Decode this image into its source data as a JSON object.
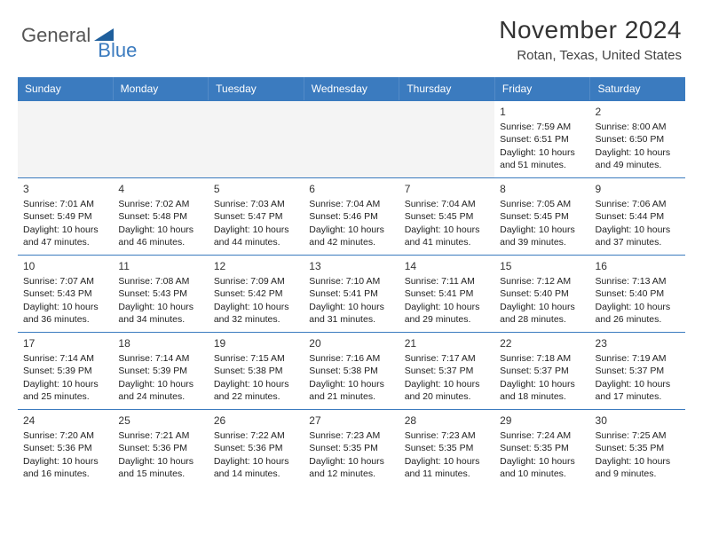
{
  "logo": {
    "part1": "General",
    "part2": "Blue"
  },
  "colors": {
    "accent": "#3b7bbf",
    "header_bg": "#3b7bbf",
    "header_text": "#ffffff",
    "grid_border": "#3b7bbf",
    "blank_bg": "#f4f4f4",
    "body_text": "#222222"
  },
  "title": "November 2024",
  "location": "Rotan, Texas, United States",
  "day_headers": [
    "Sunday",
    "Monday",
    "Tuesday",
    "Wednesday",
    "Thursday",
    "Friday",
    "Saturday"
  ],
  "weeks": [
    [
      {
        "blank": true
      },
      {
        "blank": true
      },
      {
        "blank": true
      },
      {
        "blank": true
      },
      {
        "blank": true
      },
      {
        "day": "1",
        "sunrise": "Sunrise: 7:59 AM",
        "sunset": "Sunset: 6:51 PM",
        "daylight1": "Daylight: 10 hours",
        "daylight2": "and 51 minutes."
      },
      {
        "day": "2",
        "sunrise": "Sunrise: 8:00 AM",
        "sunset": "Sunset: 6:50 PM",
        "daylight1": "Daylight: 10 hours",
        "daylight2": "and 49 minutes."
      }
    ],
    [
      {
        "day": "3",
        "sunrise": "Sunrise: 7:01 AM",
        "sunset": "Sunset: 5:49 PM",
        "daylight1": "Daylight: 10 hours",
        "daylight2": "and 47 minutes."
      },
      {
        "day": "4",
        "sunrise": "Sunrise: 7:02 AM",
        "sunset": "Sunset: 5:48 PM",
        "daylight1": "Daylight: 10 hours",
        "daylight2": "and 46 minutes."
      },
      {
        "day": "5",
        "sunrise": "Sunrise: 7:03 AM",
        "sunset": "Sunset: 5:47 PM",
        "daylight1": "Daylight: 10 hours",
        "daylight2": "and 44 minutes."
      },
      {
        "day": "6",
        "sunrise": "Sunrise: 7:04 AM",
        "sunset": "Sunset: 5:46 PM",
        "daylight1": "Daylight: 10 hours",
        "daylight2": "and 42 minutes."
      },
      {
        "day": "7",
        "sunrise": "Sunrise: 7:04 AM",
        "sunset": "Sunset: 5:45 PM",
        "daylight1": "Daylight: 10 hours",
        "daylight2": "and 41 minutes."
      },
      {
        "day": "8",
        "sunrise": "Sunrise: 7:05 AM",
        "sunset": "Sunset: 5:45 PM",
        "daylight1": "Daylight: 10 hours",
        "daylight2": "and 39 minutes."
      },
      {
        "day": "9",
        "sunrise": "Sunrise: 7:06 AM",
        "sunset": "Sunset: 5:44 PM",
        "daylight1": "Daylight: 10 hours",
        "daylight2": "and 37 minutes."
      }
    ],
    [
      {
        "day": "10",
        "sunrise": "Sunrise: 7:07 AM",
        "sunset": "Sunset: 5:43 PM",
        "daylight1": "Daylight: 10 hours",
        "daylight2": "and 36 minutes."
      },
      {
        "day": "11",
        "sunrise": "Sunrise: 7:08 AM",
        "sunset": "Sunset: 5:43 PM",
        "daylight1": "Daylight: 10 hours",
        "daylight2": "and 34 minutes."
      },
      {
        "day": "12",
        "sunrise": "Sunrise: 7:09 AM",
        "sunset": "Sunset: 5:42 PM",
        "daylight1": "Daylight: 10 hours",
        "daylight2": "and 32 minutes."
      },
      {
        "day": "13",
        "sunrise": "Sunrise: 7:10 AM",
        "sunset": "Sunset: 5:41 PM",
        "daylight1": "Daylight: 10 hours",
        "daylight2": "and 31 minutes."
      },
      {
        "day": "14",
        "sunrise": "Sunrise: 7:11 AM",
        "sunset": "Sunset: 5:41 PM",
        "daylight1": "Daylight: 10 hours",
        "daylight2": "and 29 minutes."
      },
      {
        "day": "15",
        "sunrise": "Sunrise: 7:12 AM",
        "sunset": "Sunset: 5:40 PM",
        "daylight1": "Daylight: 10 hours",
        "daylight2": "and 28 minutes."
      },
      {
        "day": "16",
        "sunrise": "Sunrise: 7:13 AM",
        "sunset": "Sunset: 5:40 PM",
        "daylight1": "Daylight: 10 hours",
        "daylight2": "and 26 minutes."
      }
    ],
    [
      {
        "day": "17",
        "sunrise": "Sunrise: 7:14 AM",
        "sunset": "Sunset: 5:39 PM",
        "daylight1": "Daylight: 10 hours",
        "daylight2": "and 25 minutes."
      },
      {
        "day": "18",
        "sunrise": "Sunrise: 7:14 AM",
        "sunset": "Sunset: 5:39 PM",
        "daylight1": "Daylight: 10 hours",
        "daylight2": "and 24 minutes."
      },
      {
        "day": "19",
        "sunrise": "Sunrise: 7:15 AM",
        "sunset": "Sunset: 5:38 PM",
        "daylight1": "Daylight: 10 hours",
        "daylight2": "and 22 minutes."
      },
      {
        "day": "20",
        "sunrise": "Sunrise: 7:16 AM",
        "sunset": "Sunset: 5:38 PM",
        "daylight1": "Daylight: 10 hours",
        "daylight2": "and 21 minutes."
      },
      {
        "day": "21",
        "sunrise": "Sunrise: 7:17 AM",
        "sunset": "Sunset: 5:37 PM",
        "daylight1": "Daylight: 10 hours",
        "daylight2": "and 20 minutes."
      },
      {
        "day": "22",
        "sunrise": "Sunrise: 7:18 AM",
        "sunset": "Sunset: 5:37 PM",
        "daylight1": "Daylight: 10 hours",
        "daylight2": "and 18 minutes."
      },
      {
        "day": "23",
        "sunrise": "Sunrise: 7:19 AM",
        "sunset": "Sunset: 5:37 PM",
        "daylight1": "Daylight: 10 hours",
        "daylight2": "and 17 minutes."
      }
    ],
    [
      {
        "day": "24",
        "sunrise": "Sunrise: 7:20 AM",
        "sunset": "Sunset: 5:36 PM",
        "daylight1": "Daylight: 10 hours",
        "daylight2": "and 16 minutes."
      },
      {
        "day": "25",
        "sunrise": "Sunrise: 7:21 AM",
        "sunset": "Sunset: 5:36 PM",
        "daylight1": "Daylight: 10 hours",
        "daylight2": "and 15 minutes."
      },
      {
        "day": "26",
        "sunrise": "Sunrise: 7:22 AM",
        "sunset": "Sunset: 5:36 PM",
        "daylight1": "Daylight: 10 hours",
        "daylight2": "and 14 minutes."
      },
      {
        "day": "27",
        "sunrise": "Sunrise: 7:23 AM",
        "sunset": "Sunset: 5:35 PM",
        "daylight1": "Daylight: 10 hours",
        "daylight2": "and 12 minutes."
      },
      {
        "day": "28",
        "sunrise": "Sunrise: 7:23 AM",
        "sunset": "Sunset: 5:35 PM",
        "daylight1": "Daylight: 10 hours",
        "daylight2": "and 11 minutes."
      },
      {
        "day": "29",
        "sunrise": "Sunrise: 7:24 AM",
        "sunset": "Sunset: 5:35 PM",
        "daylight1": "Daylight: 10 hours",
        "daylight2": "and 10 minutes."
      },
      {
        "day": "30",
        "sunrise": "Sunrise: 7:25 AM",
        "sunset": "Sunset: 5:35 PM",
        "daylight1": "Daylight: 10 hours",
        "daylight2": "and 9 minutes."
      }
    ]
  ]
}
